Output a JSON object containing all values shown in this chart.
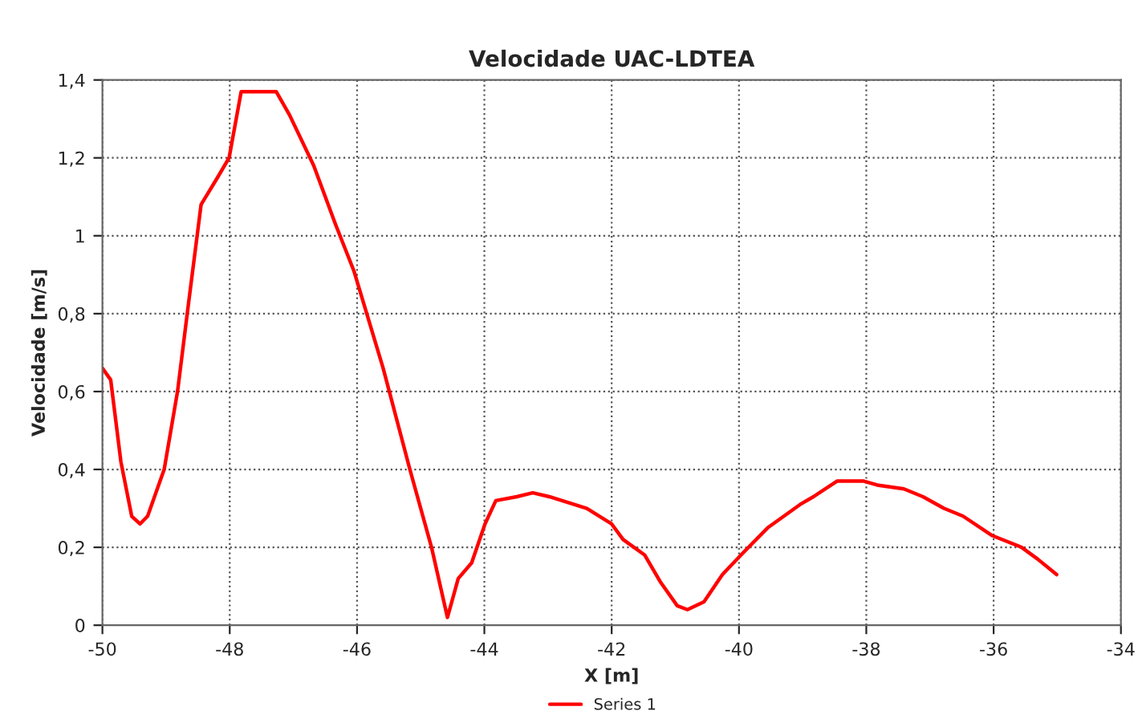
{
  "chart_data": {
    "type": "line",
    "title": "Velocidade UAC-LDTEA",
    "xlabel": "X [m]",
    "ylabel": "Velocidade [m/s]",
    "xlim": [
      -50,
      -34
    ],
    "xticks": [
      -50,
      -48,
      -46,
      -44,
      -42,
      -40,
      -38,
      -36,
      -34
    ],
    "ylim": [
      0,
      1.4
    ],
    "yticks": [
      0,
      {
        "value": 0.2,
        "label": "0,2"
      },
      {
        "value": 0.4,
        "label": "0,4"
      },
      {
        "value": 0.6,
        "label": "0,6"
      },
      {
        "value": 0.8,
        "label": "0,8"
      },
      1,
      {
        "value": 1.2,
        "label": "1,2"
      },
      {
        "value": 1.4,
        "label": "1,4"
      }
    ],
    "grid": true,
    "legend": "bottom",
    "marker": "none",
    "line_style": "solid",
    "series": [
      {
        "name": "Series 1",
        "color": "#ff0000",
        "x": [
          -50,
          -49.87,
          -49.71,
          -49.54,
          -49.41,
          -49.29,
          -49.03,
          -48.82,
          -48.66,
          -48.45,
          -48.19,
          -48.01,
          -47.82,
          -47.27,
          -47.06,
          -46.68,
          -46.34,
          -46.05,
          -45.59,
          -45.17,
          -44.83,
          -44.58,
          -44.41,
          -44.2,
          -43.99,
          -43.82,
          -43.49,
          -43.24,
          -42.98,
          -42.39,
          -42.0,
          -41.82,
          -41.48,
          -41.23,
          -40.97,
          -40.81,
          -40.55,
          -40.26,
          -39.97,
          -39.55,
          -39.04,
          -38.83,
          -38.46,
          -38.04,
          -37.83,
          -37.41,
          -37.11,
          -36.78,
          -36.48,
          -36.02,
          -35.56,
          -35.31,
          -35.01
        ],
        "values": [
          0.66,
          0.63,
          0.42,
          0.28,
          0.26,
          0.28,
          0.4,
          0.6,
          0.81,
          1.08,
          1.15,
          1.2,
          1.37,
          1.37,
          1.31,
          1.18,
          1.03,
          0.91,
          0.66,
          0.4,
          0.2,
          0.02,
          0.12,
          0.16,
          0.26,
          0.32,
          0.33,
          0.34,
          0.33,
          0.3,
          0.26,
          0.22,
          0.18,
          0.11,
          0.05,
          0.04,
          0.06,
          0.13,
          0.18,
          0.25,
          0.31,
          0.33,
          0.37,
          0.37,
          0.36,
          0.35,
          0.33,
          0.3,
          0.28,
          0.23,
          0.2,
          0.17,
          0.13
        ]
      }
    ]
  }
}
